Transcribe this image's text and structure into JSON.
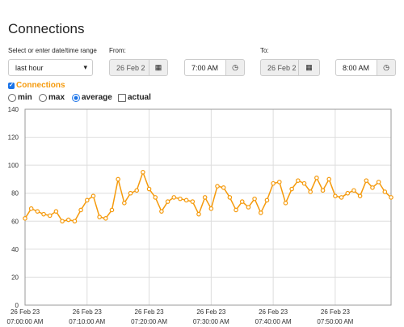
{
  "header": {
    "title": "Connections"
  },
  "controls": {
    "range_label": "Select or enter date/time range",
    "range_value": "last hour",
    "from_label": "From:",
    "from_date": "26 Feb 2",
    "from_time": "7:00 AM",
    "to_label": "To:",
    "to_date": "26 Feb 2",
    "to_time": "8:00 AM",
    "options": [
      "min",
      "max",
      "average",
      "actual"
    ]
  },
  "chart_data": {
    "type": "line",
    "series_name": "Connections",
    "color": "#f59a0c",
    "x": [
      0,
      1,
      2,
      3,
      4,
      5,
      6,
      7,
      8,
      9,
      10,
      11,
      12,
      13,
      14,
      15,
      16,
      17,
      18,
      19,
      20,
      21,
      22,
      23,
      24,
      25,
      26,
      27,
      28,
      29,
      30,
      31,
      32,
      33,
      34,
      35,
      36,
      37,
      38,
      39,
      40,
      41,
      42,
      43,
      44,
      45,
      46,
      47,
      48,
      49,
      50,
      51,
      52,
      53,
      54,
      55,
      56,
      57,
      58,
      59
    ],
    "values": [
      62,
      69,
      67,
      65,
      64,
      67,
      60,
      61,
      60,
      68,
      75,
      78,
      63,
      62,
      68,
      90,
      73,
      80,
      82,
      95,
      83,
      77,
      67,
      74,
      77,
      76,
      75,
      74,
      65,
      77,
      69,
      85,
      84,
      77,
      68,
      74,
      70,
      76,
      66,
      75,
      87,
      88,
      73,
      83,
      89,
      87,
      81,
      91,
      82,
      90,
      78,
      77,
      80,
      82,
      78,
      89,
      84,
      88,
      81,
      77
    ],
    "xlim": [
      0,
      59
    ],
    "ylim": [
      0,
      140
    ],
    "yticks": [
      0,
      20,
      40,
      60,
      80,
      100,
      120,
      140
    ],
    "xticks": [
      {
        "value": 0,
        "label": "26 Feb 23\n07:00:00 AM"
      },
      {
        "value": 10,
        "label": "26 Feb 23\n07:10:00 AM"
      },
      {
        "value": 20,
        "label": "26 Feb 23\n07:20:00 AM"
      },
      {
        "value": 30,
        "label": "26 Feb 23\n07:30:00 AM"
      },
      {
        "value": 40,
        "label": "26 Feb 23\n07:40:00 AM"
      },
      {
        "value": 50,
        "label": "26 Feb 23\n07:50:00 AM"
      }
    ],
    "grid": true
  }
}
